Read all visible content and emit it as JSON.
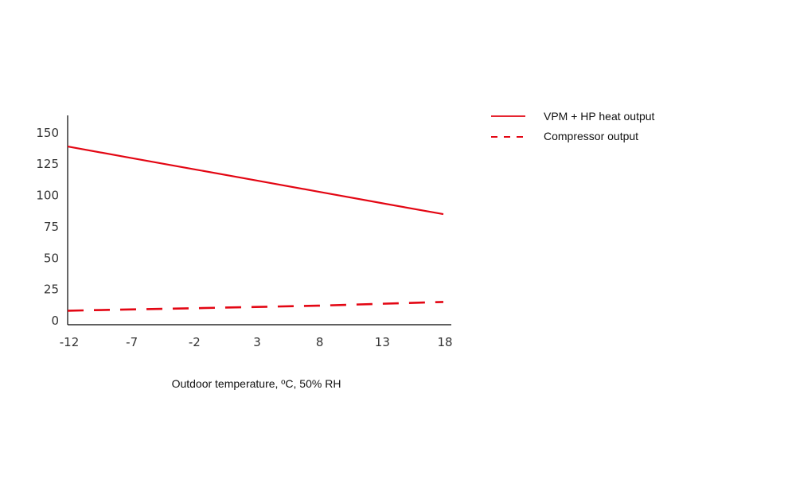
{
  "chart_data": {
    "type": "line",
    "x": [
      -12,
      -7,
      -2,
      3,
      8,
      13,
      18
    ],
    "x_tick_labels": [
      "-12",
      "-7",
      "-2",
      "3",
      "8",
      "13",
      "18"
    ],
    "y_ticks": [
      0,
      25,
      50,
      75,
      100,
      125,
      150
    ],
    "y_tick_labels": [
      "0",
      "25",
      "50",
      "75",
      "100",
      "125",
      "150"
    ],
    "ylim": [
      0,
      165
    ],
    "xlabel": "Outdoor temperature, ºC, 50% RH",
    "ylabel": "",
    "title": "",
    "legend_position": "top-right",
    "series": [
      {
        "name": "VPM + HP heat output",
        "style": "solid",
        "color": "#e30613",
        "values": [
          139,
          130,
          121,
          112,
          103,
          94,
          85
        ]
      },
      {
        "name": "Compressor output",
        "style": "dashed",
        "color": "#e30613",
        "values": [
          8,
          9,
          10,
          11,
          12,
          13.5,
          15
        ]
      }
    ]
  }
}
